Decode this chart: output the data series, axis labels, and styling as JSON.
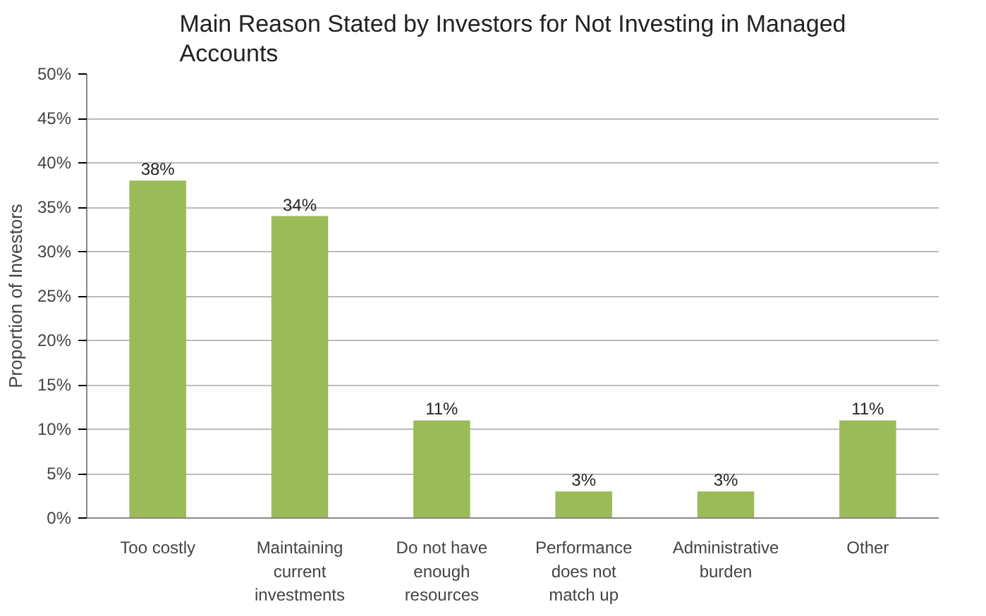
{
  "chart_data": {
    "type": "bar",
    "title": "Main Reason Stated by Investors for Not Investing in Managed Accounts",
    "ylabel": "Proportion of Investors",
    "categories": [
      "Too costly",
      "Maintaining current investments",
      "Do not have enough resources",
      "Performance does not match up",
      "Administrative burden",
      "Other"
    ],
    "values": [
      38,
      34,
      11,
      3,
      3,
      11
    ],
    "color": "#9bbb59",
    "value_labels": [
      "38%",
      "34%",
      "11%",
      "3%",
      "3%",
      "11%"
    ],
    "ylim": [
      0,
      50
    ],
    "yticks": [
      {
        "value": 0,
        "label": "0%"
      },
      {
        "value": 5,
        "label": "5%"
      },
      {
        "value": 10,
        "label": "10%"
      },
      {
        "value": 15,
        "label": "15%"
      },
      {
        "value": 20,
        "label": "20%"
      },
      {
        "value": 25,
        "label": "25%"
      },
      {
        "value": 30,
        "label": "30%"
      },
      {
        "value": 35,
        "label": "35%"
      },
      {
        "value": 40,
        "label": "40%"
      },
      {
        "value": 45,
        "label": "45%"
      },
      {
        "value": 50,
        "label": "50%"
      }
    ],
    "grid": "y"
  }
}
